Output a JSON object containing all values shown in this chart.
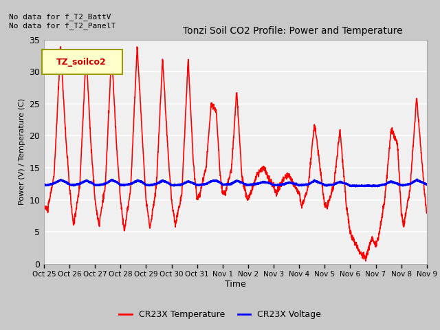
{
  "title": "Tonzi Soil CO2 Profile: Power and Temperature",
  "ylabel": "Power (V) / Temperature (C)",
  "xlabel": "Time",
  "top_text": "No data for f_T2_BattV\nNo data for f_T2_PanelT",
  "legend_label1": "TZ_soilco2",
  "legend_label2": "CR23X Temperature",
  "legend_label3": "CR23X Voltage",
  "ylim": [
    0,
    35
  ],
  "yticks": [
    0,
    5,
    10,
    15,
    20,
    25,
    30,
    35
  ],
  "xtick_labels": [
    "Oct 25",
    "Oct 26",
    "Oct 27",
    "Oct 28",
    "Oct 29",
    "Oct 30",
    "Oct 31",
    "Nov 1",
    "Nov 2",
    "Nov 3",
    "Nov 4",
    "Nov 5",
    "Nov 6",
    "Nov 7",
    "Nov 8",
    "Nov 9"
  ],
  "plot_bg_color": "#f0f0f0",
  "grid_color": "#ffffff",
  "temp_color": "#ff0000",
  "volt_color": "#0000ff",
  "temp_linewidth": 1.2,
  "volt_linewidth": 2.0
}
